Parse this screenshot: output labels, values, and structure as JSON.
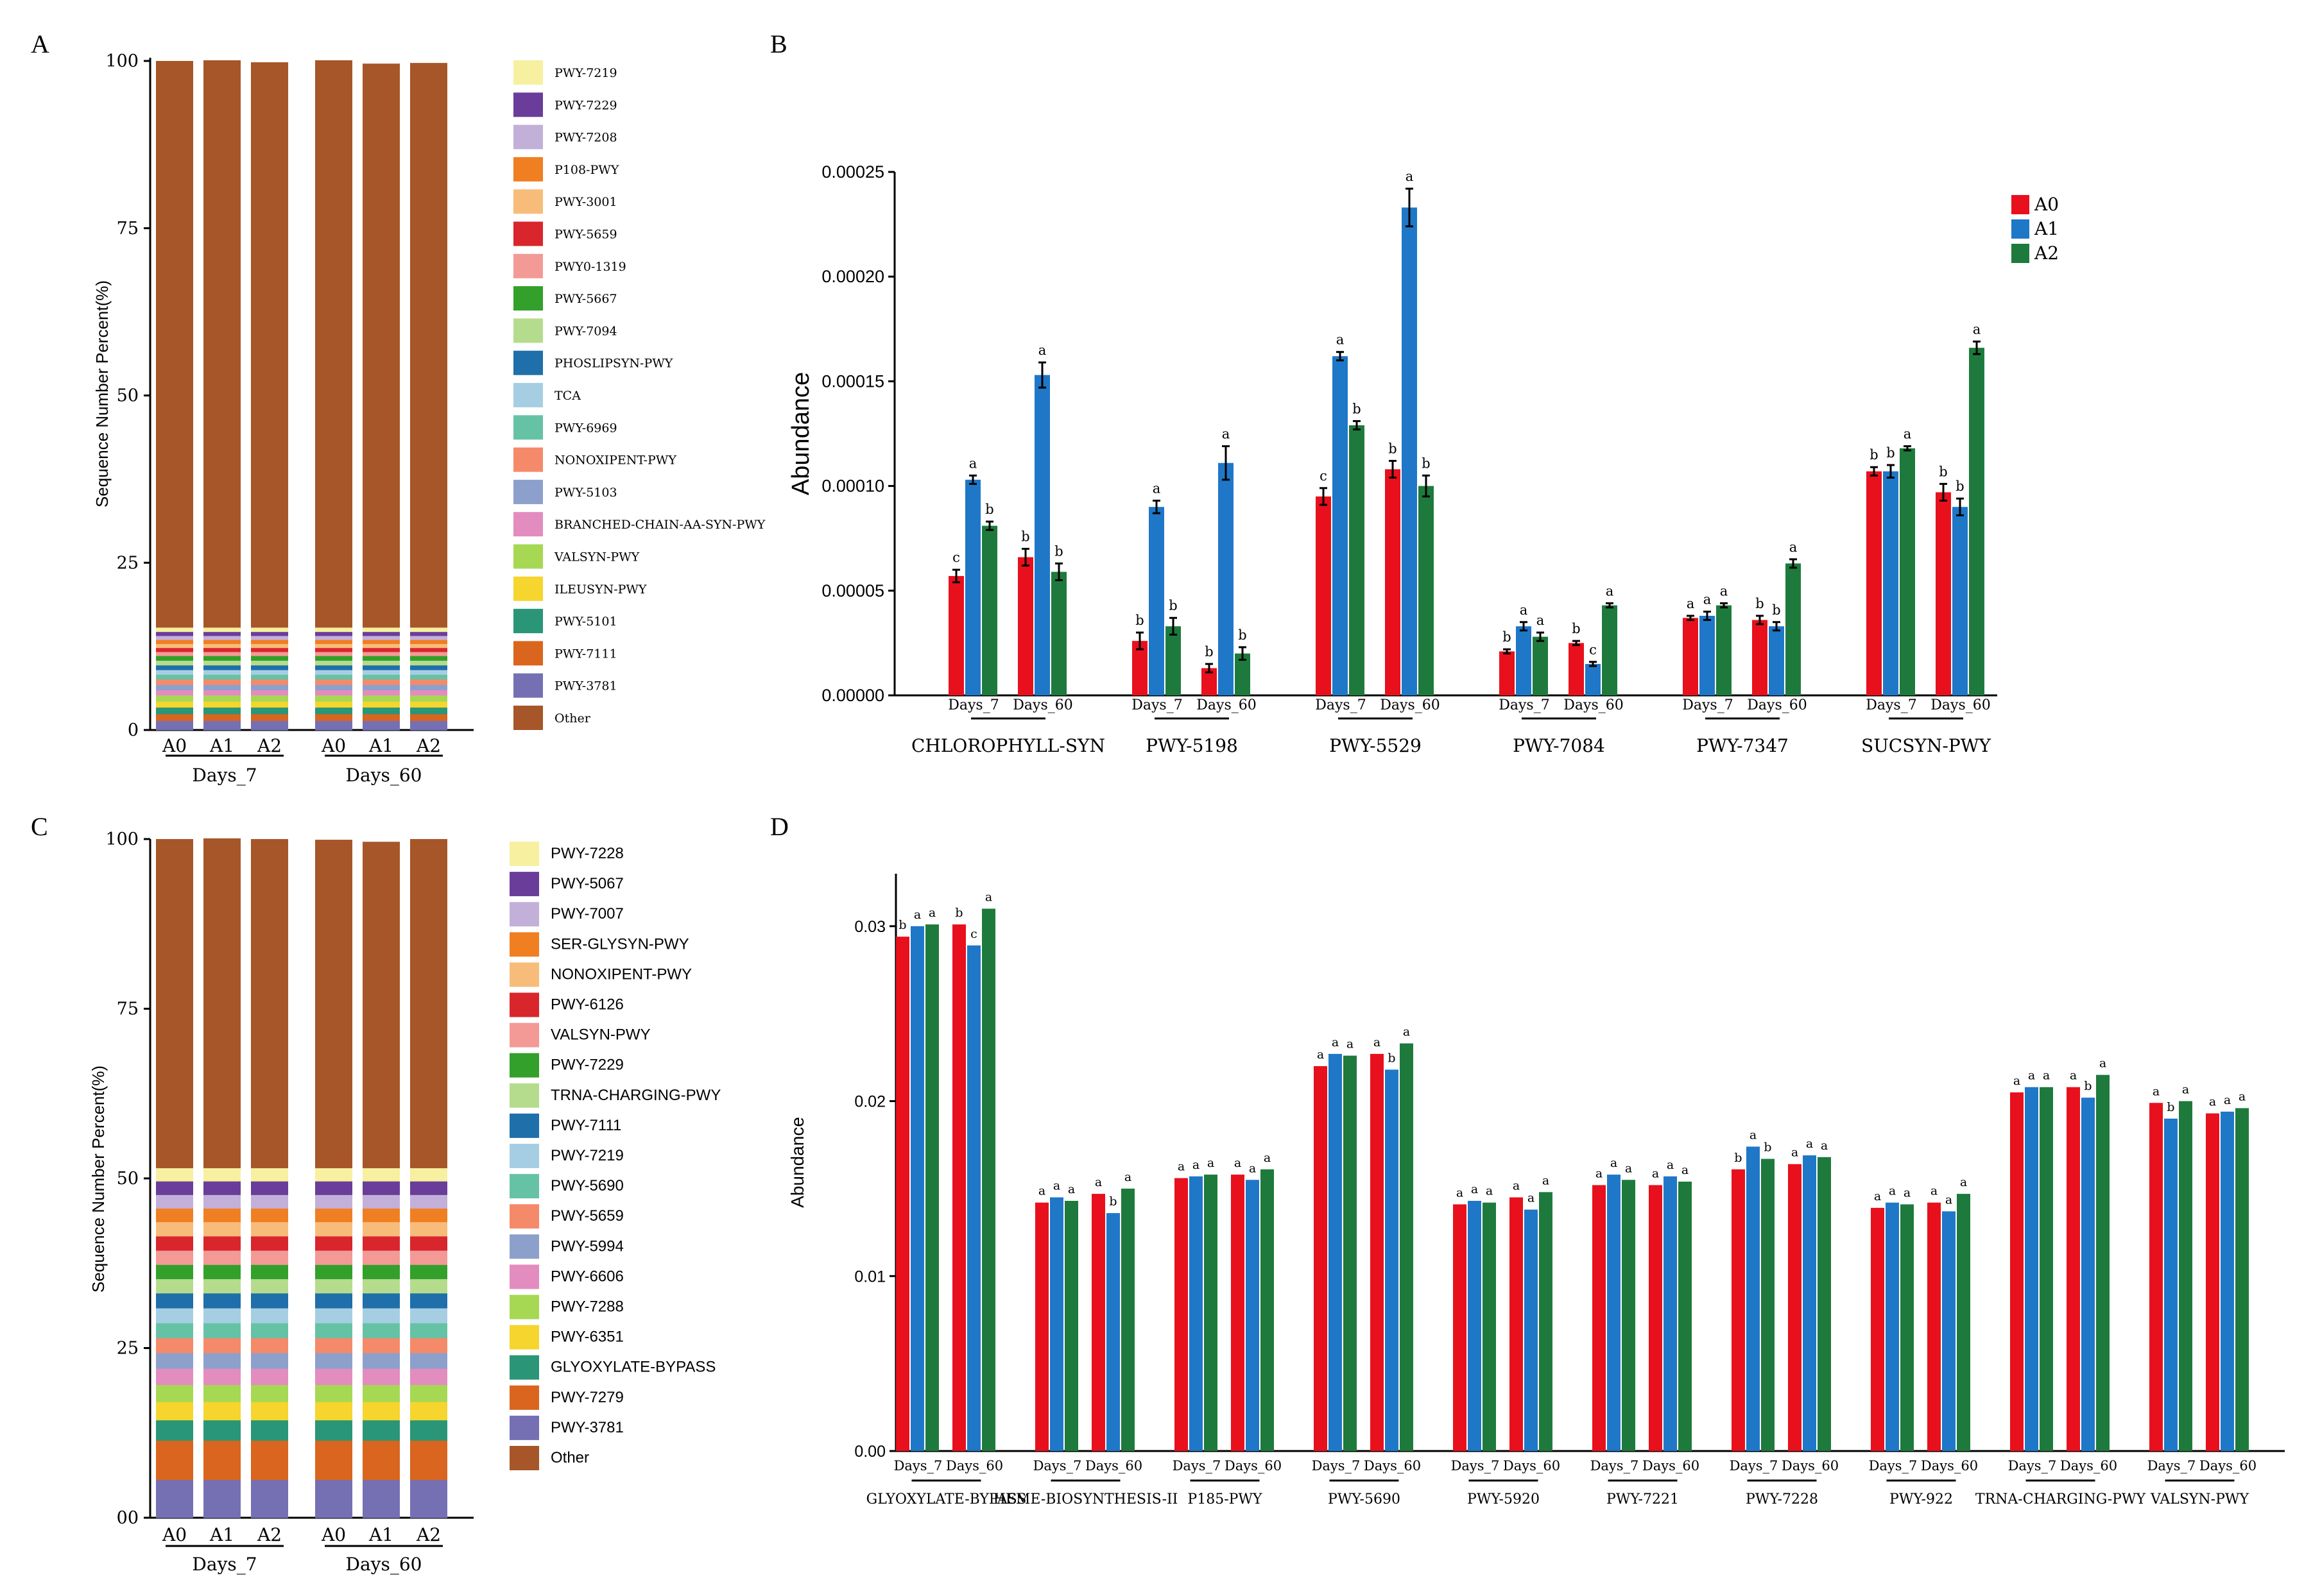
{
  "colors": {
    "A0": "#e8101c",
    "A1": "#1f77c8",
    "A2": "#1e7a3c",
    "axis": "#000000"
  },
  "chart_data": [
    {
      "panel": "A",
      "type": "bar",
      "stacked": true,
      "ylabel": "Sequence Number Percent(%)",
      "ylim": [
        0,
        100
      ],
      "yticks": [
        "0",
        "25",
        "50",
        "75",
        "100"
      ],
      "groups": [
        "Days_7",
        "Days_60"
      ],
      "categories": [
        "A0",
        "A1",
        "A2",
        "A0",
        "A1",
        "A2"
      ],
      "top_values": [
        100.0,
        100.1,
        99.8,
        100.1,
        99.6,
        99.7
      ],
      "legend": [
        {
          "name": "PWY-7219",
          "color": "#f6f0a0"
        },
        {
          "name": "PWY-7229",
          "color": "#6a3d9a"
        },
        {
          "name": "PWY-7208",
          "color": "#c2b0d8"
        },
        {
          "name": "P108-PWY",
          "color": "#f07f22"
        },
        {
          "name": "PWY-3001",
          "color": "#f8bc7a"
        },
        {
          "name": "PWY-5659",
          "color": "#d8262c"
        },
        {
          "name": "PWY0-1319",
          "color": "#f39a96"
        },
        {
          "name": "PWY-5667",
          "color": "#33a02c"
        },
        {
          "name": "PWY-7094",
          "color": "#b5dc8d"
        },
        {
          "name": "PHOSLIPSYN-PWY",
          "color": "#1f6faa"
        },
        {
          "name": "TCA",
          "color": "#a6cee3"
        },
        {
          "name": "PWY-6969",
          "color": "#66c2a5"
        },
        {
          "name": "NONOXIPENT-PWY",
          "color": "#f58a6a"
        },
        {
          "name": "PWY-5103",
          "color": "#8da0cb"
        },
        {
          "name": "BRANCHED-CHAIN-AA-SYN-PWY",
          "color": "#e38cbf"
        },
        {
          "name": "VALSYN-PWY",
          "color": "#a6d854"
        },
        {
          "name": "ILEUSYN-PWY",
          "color": "#f5d52e"
        },
        {
          "name": "PWY-5101",
          "color": "#2a9677"
        },
        {
          "name": "PWY-7111",
          "color": "#d9651e"
        },
        {
          "name": "PWY-3781",
          "color": "#7570b3"
        },
        {
          "name": "Other",
          "color": "#a65628"
        }
      ],
      "segments": [
        1.4,
        1.0,
        1.0,
        0.9,
        0.9,
        0.8,
        0.8,
        0.8,
        0.7,
        0.7,
        0.7,
        0.7,
        0.7,
        0.6,
        0.6,
        0.6,
        0.6,
        0.6,
        0.6,
        0.6
      ]
    },
    {
      "panel": "B",
      "type": "bar",
      "ylabel": "Abundance",
      "ylim": [
        0,
        0.00025
      ],
      "yticks": [
        "0.00000",
        "0.00005",
        "0.00010",
        "0.00015",
        "0.00020",
        "0.00025"
      ],
      "legend": [
        "A0",
        "A1",
        "A2"
      ],
      "sublabels": [
        "Days_7",
        "Days_60"
      ],
      "categories": [
        "CHLOROPHYLL-SYN",
        "PWY-5198",
        "PWY-5529",
        "PWY-7084",
        "PWY-7347",
        "SUCSYN-PWY"
      ],
      "pathways": [
        {
          "d7": [
            5.7e-05,
            0.000103,
            8.1e-05
          ],
          "d60": [
            6.6e-05,
            0.000153,
            5.9e-05
          ],
          "e7": [
            3e-06,
            2e-06,
            2e-06
          ],
          "e60": [
            4e-06,
            6e-06,
            4e-06
          ],
          "l7": [
            "c",
            "a",
            "b"
          ],
          "l60": [
            "b",
            "a",
            "b"
          ]
        },
        {
          "d7": [
            2.6e-05,
            9e-05,
            3.3e-05
          ],
          "d60": [
            1.3e-05,
            0.000111,
            2e-05
          ],
          "e7": [
            4e-06,
            3e-06,
            4e-06
          ],
          "e60": [
            2e-06,
            8e-06,
            3e-06
          ],
          "l7": [
            "b",
            "a",
            "b"
          ],
          "l60": [
            "b",
            "a",
            "b"
          ]
        },
        {
          "d7": [
            9.5e-05,
            0.000162,
            0.000129
          ],
          "d60": [
            0.000108,
            0.000233,
            0.0001
          ],
          "e7": [
            4e-06,
            2e-06,
            2e-06
          ],
          "e60": [
            4e-06,
            9e-06,
            5e-06
          ],
          "l7": [
            "c",
            "a",
            "b"
          ],
          "l60": [
            "b",
            "a",
            "b"
          ]
        },
        {
          "d7": [
            2.1e-05,
            3.3e-05,
            2.8e-05
          ],
          "d60": [
            2.5e-05,
            1.5e-05,
            4.3e-05
          ],
          "e7": [
            1e-06,
            2e-06,
            2e-06
          ],
          "e60": [
            1e-06,
            1e-06,
            1e-06
          ],
          "l7": [
            "b",
            "a",
            "a"
          ],
          "l60": [
            "b",
            "c",
            "a"
          ]
        },
        {
          "d7": [
            3.7e-05,
            3.8e-05,
            4.3e-05
          ],
          "d60": [
            3.6e-05,
            3.3e-05,
            6.3e-05
          ],
          "e7": [
            1e-06,
            2e-06,
            1e-06
          ],
          "e60": [
            2e-06,
            2e-06,
            2e-06
          ],
          "l7": [
            "a",
            "a",
            "a"
          ],
          "l60": [
            "b",
            "b",
            "a"
          ]
        },
        {
          "d7": [
            0.000107,
            0.000107,
            0.000118
          ],
          "d60": [
            9.7e-05,
            9e-05,
            0.000166
          ],
          "e7": [
            2e-06,
            3e-06,
            1e-06
          ],
          "e60": [
            4e-06,
            4e-06,
            3e-06
          ],
          "l7": [
            "b",
            "b",
            "a"
          ],
          "l60": [
            "b",
            "b",
            "a"
          ]
        }
      ]
    },
    {
      "panel": "C",
      "type": "bar",
      "stacked": true,
      "ylabel": "Sequence Number Percent(%)",
      "ylim": [
        0,
        100
      ],
      "yticks": [
        "00",
        "25",
        "50",
        "75",
        "100"
      ],
      "groups": [
        "Days_7",
        "Days_60"
      ],
      "categories": [
        "A0",
        "A1",
        "A2",
        "A0",
        "A1",
        "A2"
      ],
      "top_values": [
        100.0,
        100.1,
        100.0,
        99.9,
        99.6,
        100.0
      ],
      "legend": [
        {
          "name": "PWY-7228",
          "color": "#f6f0a0"
        },
        {
          "name": "PWY-5067",
          "color": "#6a3d9a"
        },
        {
          "name": "PWY-7007",
          "color": "#c2b0d8"
        },
        {
          "name": "SER-GLYSYN-PWY",
          "color": "#f07f22"
        },
        {
          "name": "NONOXIPENT-PWY",
          "color": "#f8bc7a"
        },
        {
          "name": "PWY-6126",
          "color": "#d8262c"
        },
        {
          "name": "VALSYN-PWY",
          "color": "#f39a96"
        },
        {
          "name": "PWY-7229",
          "color": "#33a02c"
        },
        {
          "name": "TRNA-CHARGING-PWY",
          "color": "#b5dc8d"
        },
        {
          "name": "PWY-7111",
          "color": "#1f6faa"
        },
        {
          "name": "PWY-7219",
          "color": "#a6cee3"
        },
        {
          "name": "PWY-5690",
          "color": "#66c2a5"
        },
        {
          "name": "PWY-5659",
          "color": "#f58a6a"
        },
        {
          "name": "PWY-5994",
          "color": "#8da0cb"
        },
        {
          "name": "PWY-6606",
          "color": "#e38cbf"
        },
        {
          "name": "PWY-7288",
          "color": "#a6d854"
        },
        {
          "name": "PWY-6351",
          "color": "#f5d52e"
        },
        {
          "name": "GLYOXYLATE-BYPASS",
          "color": "#2a9677"
        },
        {
          "name": "PWY-7279",
          "color": "#d9651e"
        },
        {
          "name": "PWY-3781",
          "color": "#7570b3"
        },
        {
          "name": "Other",
          "color": "#a65628"
        }
      ],
      "segments": [
        5.6,
        5.8,
        3.0,
        2.7,
        2.5,
        2.4,
        2.3,
        2.2,
        2.2,
        2.2,
        2.2,
        2.1,
        2.1,
        2.1,
        2.1,
        2.1,
        2.0,
        2.0,
        2.0,
        1.9
      ]
    },
    {
      "panel": "D",
      "type": "bar",
      "ylabel": "Abundance",
      "ylim": [
        0,
        0.033
      ],
      "yticks": [
        "0.00",
        "0.01",
        "0.02",
        "0.03"
      ],
      "legend": [
        "A0",
        "A1",
        "A2"
      ],
      "sublabels": [
        "Days_7",
        "Days_60"
      ],
      "categories": [
        "GLYOXYLATE-BYPASS",
        "HEME-BIOSYNTHESIS-II",
        "P185-PWY",
        "PWY-5690",
        "PWY-5920",
        "PWY-7221",
        "PWY-7228",
        "PWY-922",
        "TRNA-CHARGING-PWY",
        "VALSYN-PWY"
      ],
      "pathways": [
        {
          "d7": [
            0.0294,
            0.03,
            0.0301
          ],
          "d60": [
            0.0301,
            0.0289,
            0.031
          ],
          "l7": [
            "b",
            "a",
            "a"
          ],
          "l60": [
            "b",
            "c",
            "a"
          ]
        },
        {
          "d7": [
            0.0142,
            0.0145,
            0.0143
          ],
          "d60": [
            0.0147,
            0.0136,
            0.015
          ],
          "l7": [
            "a",
            "a",
            "a"
          ],
          "l60": [
            "a",
            "b",
            "a"
          ]
        },
        {
          "d7": [
            0.0156,
            0.0157,
            0.0158
          ],
          "d60": [
            0.0158,
            0.0155,
            0.0161
          ],
          "l7": [
            "a",
            "a",
            "a"
          ],
          "l60": [
            "a",
            "a",
            "a"
          ]
        },
        {
          "d7": [
            0.022,
            0.0227,
            0.0226
          ],
          "d60": [
            0.0227,
            0.0218,
            0.0233
          ],
          "l7": [
            "a",
            "a",
            "a"
          ],
          "l60": [
            "a",
            "b",
            "a"
          ]
        },
        {
          "d7": [
            0.0141,
            0.0143,
            0.0142
          ],
          "d60": [
            0.0145,
            0.0138,
            0.0148
          ],
          "l7": [
            "a",
            "a",
            "a"
          ],
          "l60": [
            "a",
            "a",
            "a"
          ]
        },
        {
          "d7": [
            0.0152,
            0.0158,
            0.0155
          ],
          "d60": [
            0.0152,
            0.0157,
            0.0154
          ],
          "l7": [
            "a",
            "a",
            "a"
          ],
          "l60": [
            "a",
            "a",
            "a"
          ]
        },
        {
          "d7": [
            0.0161,
            0.0174,
            0.0167
          ],
          "d60": [
            0.0164,
            0.0169,
            0.0168
          ],
          "l7": [
            "b",
            "a",
            "b"
          ],
          "l60": [
            "a",
            "a",
            "a"
          ]
        },
        {
          "d7": [
            0.0139,
            0.0142,
            0.0141
          ],
          "d60": [
            0.0142,
            0.0137,
            0.0147
          ],
          "l7": [
            "a",
            "a",
            "a"
          ],
          "l60": [
            "a",
            "a",
            "a"
          ]
        },
        {
          "d7": [
            0.0205,
            0.0208,
            0.0208
          ],
          "d60": [
            0.0208,
            0.0202,
            0.0215
          ],
          "l7": [
            "a",
            "a",
            "a"
          ],
          "l60": [
            "a",
            "b",
            "a"
          ]
        },
        {
          "d7": [
            0.0199,
            0.019,
            0.02
          ],
          "d60": [
            0.0193,
            0.0194,
            0.0196
          ],
          "l7": [
            "a",
            "b",
            "a"
          ],
          "l60": [
            "a",
            "a",
            "a"
          ]
        }
      ]
    }
  ]
}
